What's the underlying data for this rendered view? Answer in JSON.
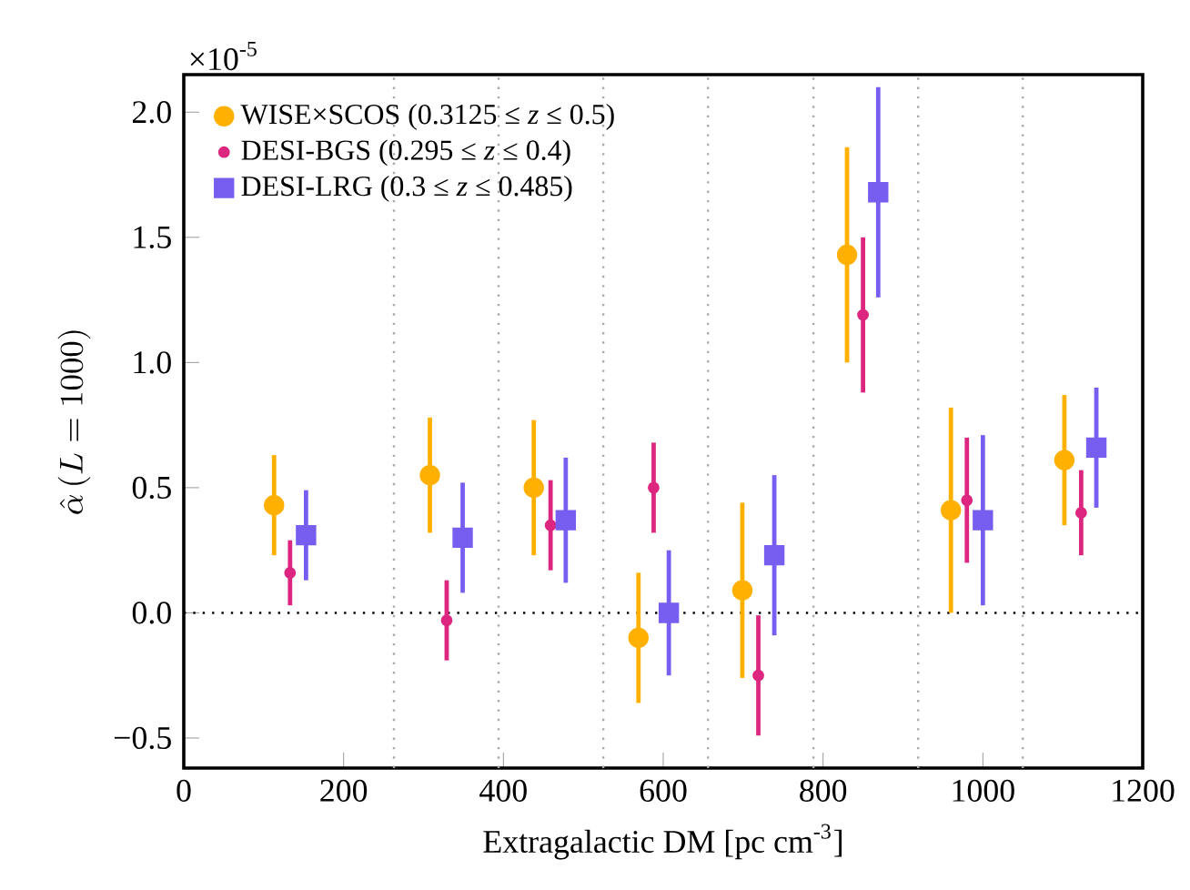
{
  "chart_data": {
    "type": "scatter",
    "xlabel": "Extragalactic DM  [pc cm$^{-3}$]",
    "ylabel": "\\hat{\\alpha}\\,(L=1000)",
    "annotations": [
      "×10$^{-5}$"
    ],
    "xlim": [
      0,
      1200
    ],
    "xticks": [
      0,
      200,
      400,
      600,
      800,
      1000,
      1200
    ],
    "ylim": [
      -0.62,
      2.15
    ],
    "yticks": [
      {
        "value": -0.5,
        "label": "−0.5"
      },
      {
        "value": 0,
        "label": "0.0"
      },
      {
        "value": 0.5,
        "label": "0.5"
      },
      {
        "value": 1,
        "label": "1.0"
      },
      {
        "value": 1.5,
        "label": "1.5"
      },
      {
        "value": 2,
        "label": "2.0"
      }
    ],
    "grid": false,
    "legend": "top left",
    "ref_lines": [
      {
        "axis": "y",
        "value": 0,
        "color": "#000000",
        "line_style": "dotted"
      },
      {
        "axis": "x",
        "value": 263,
        "color": "#aaaaaa",
        "line_style": "dotted"
      },
      {
        "axis": "x",
        "value": 394,
        "color": "#aaaaaa",
        "line_style": "dotted"
      },
      {
        "axis": "x",
        "value": 525,
        "color": "#aaaaaa",
        "line_style": "dotted"
      },
      {
        "axis": "x",
        "value": 656,
        "color": "#aaaaaa",
        "line_style": "dotted"
      },
      {
        "axis": "x",
        "value": 788,
        "color": "#aaaaaa",
        "line_style": "dotted"
      },
      {
        "axis": "x",
        "value": 919,
        "color": "#aaaaaa",
        "line_style": "dotted"
      },
      {
        "axis": "x",
        "value": 1050,
        "color": "#aaaaaa",
        "line_style": "dotted"
      }
    ],
    "series": [
      {
        "name": "WISE×SCOS (0.3125 ≤ *z* ≤ 0.5)",
        "color": "#ffb000",
        "marker": "circle",
        "x": [
          113,
          308,
          438,
          569,
          699,
          830,
          960,
          1102
        ],
        "values": [
          0.43,
          0.55,
          0.5,
          -0.1,
          0.09,
          1.43,
          0.41,
          0.61
        ],
        "errors": [
          0.2,
          0.23,
          0.27,
          0.26,
          0.35,
          0.43,
          0.41,
          0.26
        ]
      },
      {
        "name": "DESI-BGS (0.295 ≤ *z* ≤ 0.4)",
        "color": "#dc267f",
        "marker": "circle",
        "x": [
          133,
          329,
          459,
          588,
          719,
          850,
          980,
          1123
        ],
        "values": [
          0.16,
          -0.03,
          0.35,
          0.5,
          -0.25,
          1.19,
          0.45,
          0.4
        ],
        "errors": [
          0.13,
          0.16,
          0.18,
          0.18,
          0.24,
          0.31,
          0.25,
          0.17
        ]
      },
      {
        "name": "DESI-LRG (0.3 ≤ *z* ≤ 0.485)",
        "color": "#785ef0",
        "marker": "square",
        "x": [
          153,
          349,
          478,
          607,
          739,
          869,
          1000,
          1142
        ],
        "values": [
          0.31,
          0.3,
          0.37,
          0.0,
          0.23,
          1.68,
          0.37,
          0.66
        ],
        "errors": [
          0.18,
          0.22,
          0.25,
          0.25,
          0.32,
          0.42,
          0.34,
          0.24
        ]
      }
    ]
  }
}
